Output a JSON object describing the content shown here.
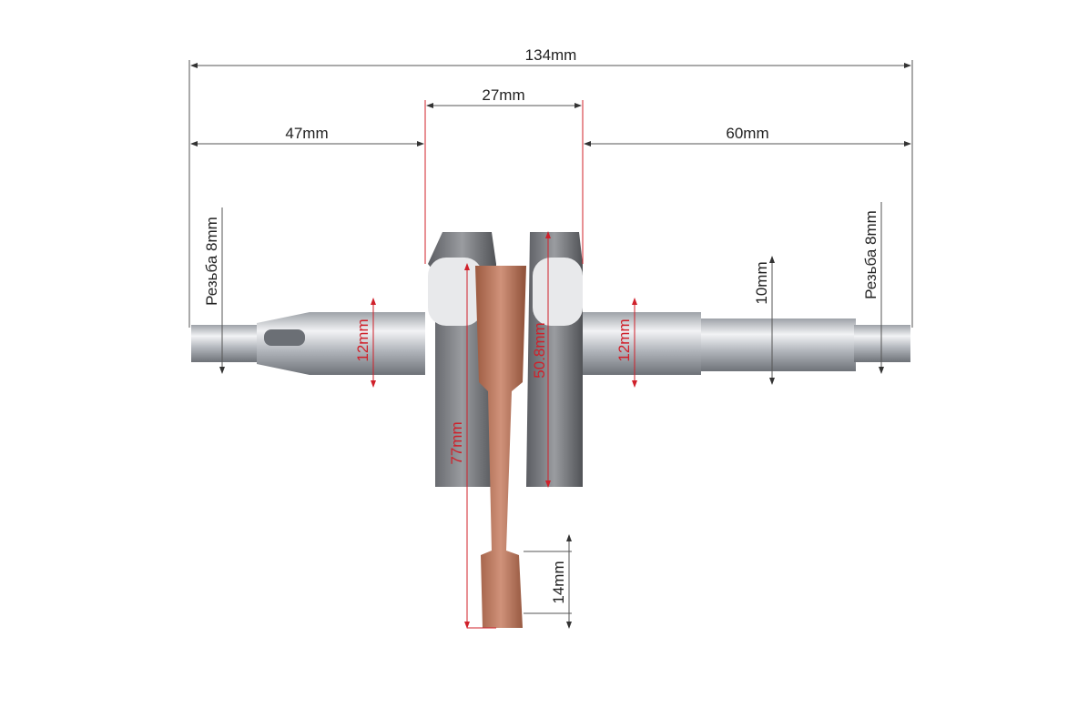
{
  "dimensions": {
    "overall_length": "134mm",
    "web_width": "27mm",
    "left_shaft_length": "47mm",
    "right_shaft_length": "60mm",
    "left_thread": "Резьба 8mm",
    "right_thread": "Резьба 8mm",
    "left_journal_diameter": "12mm",
    "right_journal_diameter": "12mm",
    "web_diameter": "50.8mm",
    "rod_length": "77mm",
    "small_end": "14mm",
    "right_shaft_diameter": "10mm"
  },
  "colors": {
    "annotation_red": "#d0202a",
    "annotation_black": "#222222",
    "rod_copper": "#b9745a",
    "steel": "#b8bcc2"
  }
}
